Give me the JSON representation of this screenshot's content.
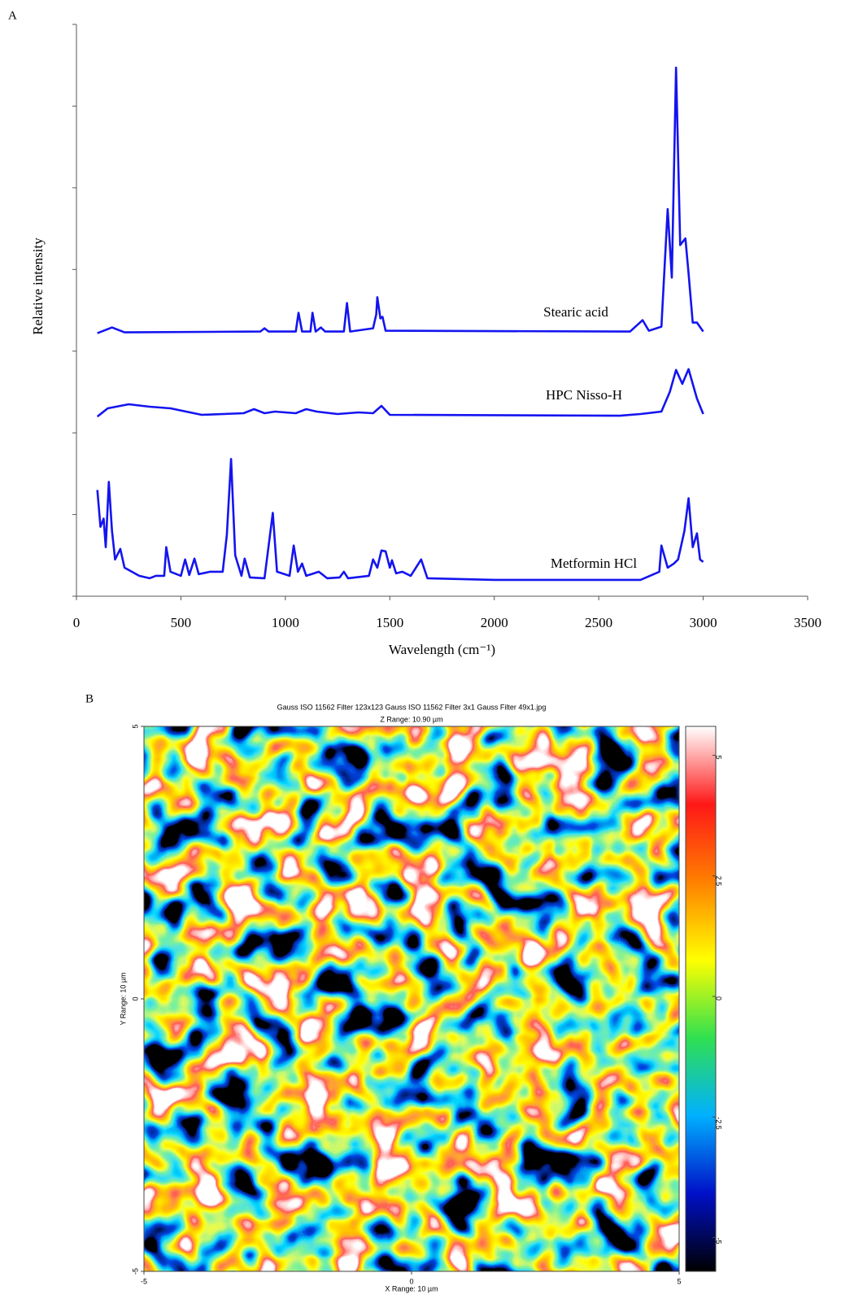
{
  "chart_data": [
    {
      "type": "line",
      "panel_label": "A",
      "x_label": "Wavelength (cm⁻¹)",
      "y_label": "Relative intensity",
      "xlim": [
        0,
        3500
      ],
      "xticks": [
        0,
        500,
        1000,
        1500,
        2000,
        2500,
        3000,
        3500
      ],
      "ylim": [
        0,
        7
      ],
      "yticks": [
        0,
        1,
        2,
        3,
        4,
        5,
        6,
        7
      ],
      "ytick_labels": false,
      "series": [
        {
          "name": "Stearic acid",
          "color": "#1414f0",
          "x": [
            100,
            170,
            230,
            880,
            900,
            920,
            1050,
            1063,
            1080,
            1120,
            1130,
            1145,
            1170,
            1190,
            1280,
            1295,
            1310,
            1420,
            1435,
            1440,
            1455,
            1465,
            1480,
            2650,
            2710,
            2740,
            2800,
            2830,
            2850,
            2870,
            2890,
            2915,
            2930,
            2950,
            2970,
            3000
          ],
          "values": [
            3.22,
            3.29,
            3.23,
            3.24,
            3.28,
            3.24,
            3.24,
            3.47,
            3.24,
            3.24,
            3.47,
            3.24,
            3.29,
            3.24,
            3.24,
            3.59,
            3.24,
            3.28,
            3.45,
            3.66,
            3.4,
            3.42,
            3.25,
            3.24,
            3.38,
            3.25,
            3.3,
            4.74,
            3.9,
            6.47,
            4.3,
            4.38,
            3.95,
            3.35,
            3.35,
            3.24
          ]
        },
        {
          "name": "HPC Nisso-H",
          "color": "#1414f0",
          "x": [
            100,
            150,
            250,
            350,
            450,
            600,
            800,
            850,
            900,
            950,
            1050,
            1100,
            1150,
            1250,
            1350,
            1420,
            1460,
            1500,
            2600,
            2700,
            2800,
            2840,
            2870,
            2900,
            2930,
            2950,
            2970,
            3000
          ],
          "values": [
            2.2,
            2.3,
            2.35,
            2.32,
            2.3,
            2.22,
            2.24,
            2.29,
            2.24,
            2.26,
            2.24,
            2.29,
            2.26,
            2.23,
            2.25,
            2.24,
            2.33,
            2.22,
            2.21,
            2.23,
            2.26,
            2.5,
            2.77,
            2.6,
            2.78,
            2.6,
            2.42,
            2.23
          ]
        },
        {
          "name": "Metformin HCl",
          "color": "#1414f0",
          "x": [
            100,
            115,
            130,
            140,
            155,
            170,
            185,
            210,
            230,
            300,
            350,
            380,
            420,
            430,
            450,
            500,
            520,
            540,
            565,
            585,
            640,
            700,
            720,
            740,
            760,
            790,
            805,
            830,
            900,
            940,
            960,
            1020,
            1040,
            1060,
            1080,
            1100,
            1160,
            1200,
            1260,
            1280,
            1300,
            1400,
            1420,
            1440,
            1460,
            1480,
            1500,
            1510,
            1530,
            1560,
            1600,
            1650,
            1680,
            2000,
            2700,
            2790,
            2800,
            2830,
            2860,
            2880,
            2910,
            2930,
            2950,
            2970,
            2985,
            3000
          ],
          "values": [
            1.3,
            0.85,
            0.95,
            0.6,
            1.4,
            0.8,
            0.45,
            0.58,
            0.35,
            0.25,
            0.22,
            0.25,
            0.25,
            0.6,
            0.3,
            0.25,
            0.45,
            0.26,
            0.46,
            0.27,
            0.3,
            0.3,
            0.75,
            1.68,
            0.5,
            0.25,
            0.46,
            0.23,
            0.22,
            1.02,
            0.3,
            0.25,
            0.62,
            0.3,
            0.4,
            0.25,
            0.3,
            0.22,
            0.23,
            0.3,
            0.22,
            0.25,
            0.45,
            0.35,
            0.56,
            0.55,
            0.35,
            0.44,
            0.28,
            0.3,
            0.25,
            0.45,
            0.22,
            0.2,
            0.2,
            0.3,
            0.62,
            0.35,
            0.4,
            0.45,
            0.8,
            1.2,
            0.6,
            0.77,
            0.45,
            0.42
          ]
        }
      ]
    },
    {
      "type": "heatmap",
      "panel_label": "B",
      "title": "Gauss ISO 11562 Filter 123x123 Gauss ISO 11562 Filter 3x1 Gauss Filter 49x1.jpg",
      "subtitle": "Z Range:  10.90 µm",
      "x_label": "X Range: 10 µm",
      "y_label": "Y Range: 10 µm",
      "xlim": [
        -5,
        5
      ],
      "xticks": [
        -5,
        0,
        5
      ],
      "ylim": [
        -5,
        5
      ],
      "yticks": [
        -5,
        0,
        5
      ],
      "zlim": [
        -5.7,
        5.6
      ],
      "zticks": [
        -5,
        -2.5,
        0,
        2.5,
        5
      ],
      "colors": [
        "#000000",
        "#0010c8",
        "#00b0ff",
        "#30e050",
        "#ffff00",
        "#ff8000",
        "#ff1818",
        "#ffffff"
      ]
    }
  ]
}
